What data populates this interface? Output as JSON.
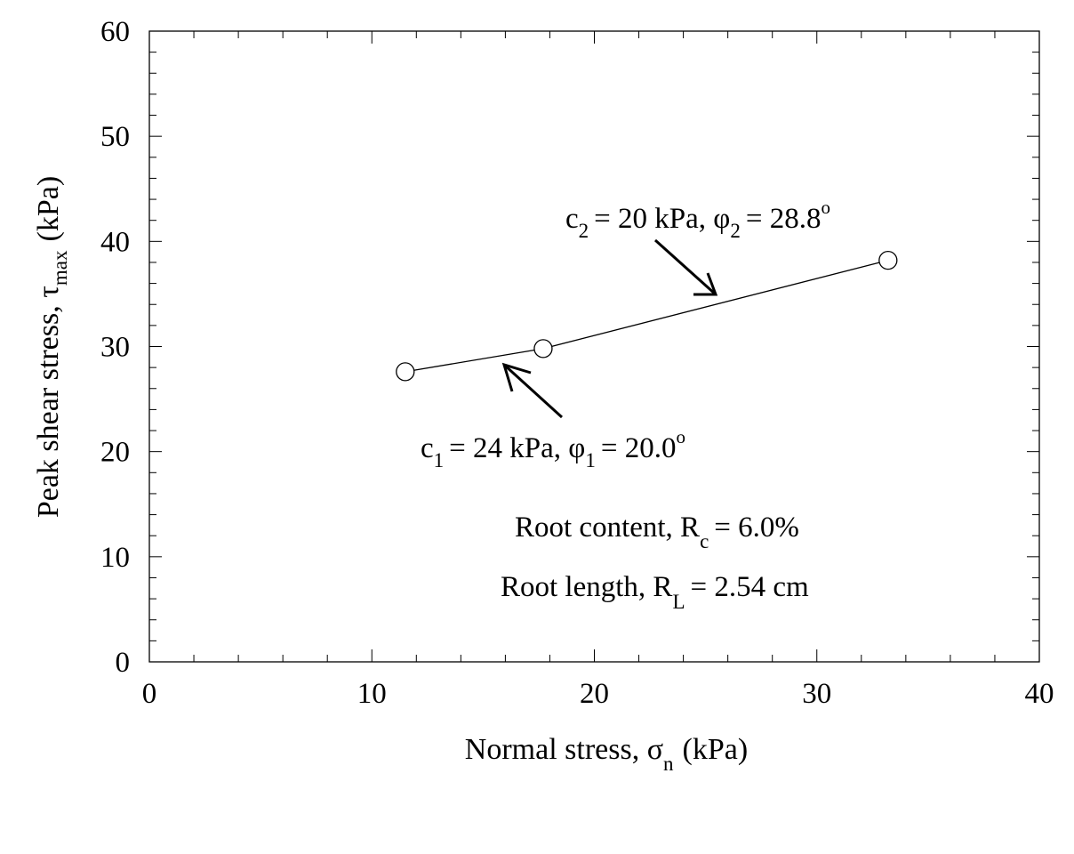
{
  "chart_data": {
    "type": "line",
    "x": [
      11.5,
      17.7,
      33.2
    ],
    "series": [
      {
        "values": [
          27.6,
          29.8,
          38.2
        ]
      }
    ],
    "xlim": [
      0,
      40
    ],
    "ylim": [
      0,
      60
    ],
    "xticks": [
      0,
      10,
      20,
      30,
      40
    ],
    "yticks": [
      0,
      10,
      20,
      30,
      40,
      50,
      60
    ],
    "xticks_minor_step": 2,
    "yticks_minor_step": 2,
    "xlabel": {
      "main": "Normal stress, σ",
      "sub": "n",
      "unit": "(kPa)"
    },
    "ylabel": {
      "main": "Peak shear stress, τ",
      "sub": "max",
      "unit": "(kPa)"
    },
    "grid": false,
    "marker": "open-circle",
    "annotations": {
      "segment2": {
        "c": "c",
        "c_sub": "2",
        "mid": "= 20 kPa, φ",
        "phi_sub": "2",
        "end": "= 28.8",
        "deg": "o"
      },
      "segment1": {
        "c": "c",
        "c_sub": "1",
        "mid": "= 24 kPa, φ",
        "phi_sub": "1",
        "end": "= 20.0",
        "deg": "o"
      },
      "root_content": {
        "main": "Root content, R",
        "sub": "c",
        "end": "= 6.0%"
      },
      "root_length": {
        "main": "Root length, R",
        "sub": "L",
        "end": "= 2.54 cm"
      }
    }
  }
}
